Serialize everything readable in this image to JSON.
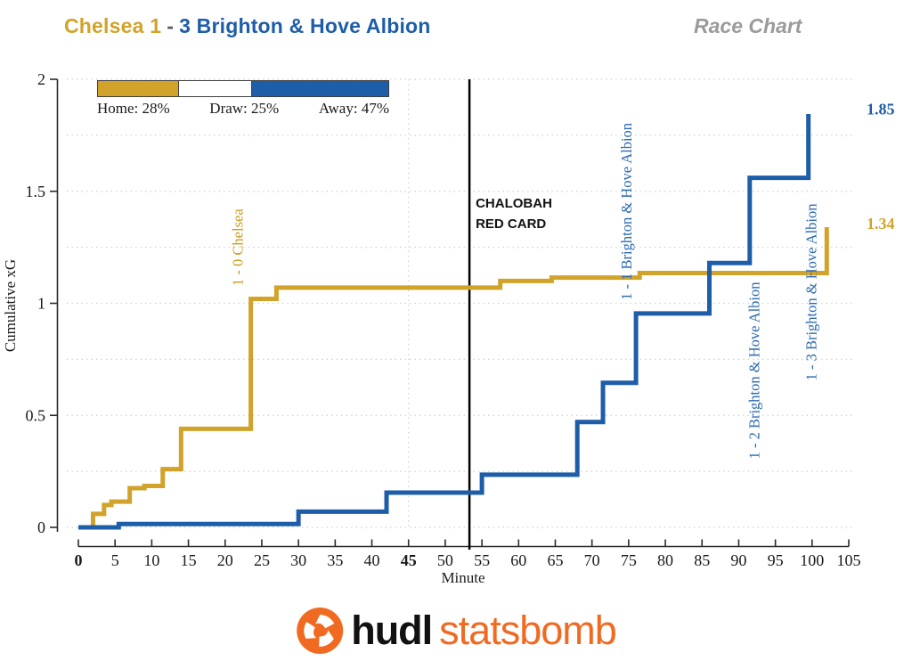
{
  "header": {
    "home_part": "Chelsea 1",
    "separator": "-",
    "away_part": "3 Brighton & Hove Albion",
    "chart_type_label": "Race Chart",
    "home_color": "#d2a32b",
    "away_color": "#1e5da8"
  },
  "legend": {
    "items": [
      {
        "label": "Home: 28%",
        "pct": 28,
        "color": "#d2a32b"
      },
      {
        "label": "Draw: 25%",
        "pct": 25,
        "color": "#ffffff"
      },
      {
        "label": "Away: 47%",
        "pct": 47,
        "color": "#1e5da8"
      }
    ]
  },
  "chart_data": {
    "type": "line",
    "subtype": "step-race-chart",
    "xlabel": "Minute",
    "ylabel": "Cumulative xG",
    "xlim": [
      0,
      105
    ],
    "ylim": [
      0,
      2
    ],
    "x_ticks": [
      0,
      5,
      10,
      15,
      20,
      25,
      30,
      35,
      40,
      45,
      50,
      55,
      60,
      65,
      70,
      75,
      80,
      85,
      90,
      95,
      100,
      105
    ],
    "x_ticks_bold": [
      0,
      45
    ],
    "y_ticks": [
      0,
      0.5,
      1,
      1.5,
      2
    ],
    "grid": {
      "horizontal_step": 0.25,
      "vertical_lines_minutes": [
        45
      ],
      "color": "#d2d2d2"
    },
    "series": [
      {
        "name": "Chelsea",
        "color": "#d2a32b",
        "final_value": 1.34,
        "final_label": "1.34",
        "steps": [
          [
            2,
            0.06
          ],
          [
            3.5,
            0.1
          ],
          [
            4.5,
            0.115
          ],
          [
            7,
            0.175
          ],
          [
            9,
            0.185
          ],
          [
            11.5,
            0.26
          ],
          [
            14,
            0.44
          ],
          [
            23.5,
            1.02
          ],
          [
            27,
            1.07
          ],
          [
            57.5,
            1.1
          ],
          [
            64.5,
            1.115
          ],
          [
            76.5,
            1.135
          ],
          [
            102,
            1.34
          ]
        ]
      },
      {
        "name": "Brighton & Hove Albion",
        "color": "#1e5da8",
        "final_value": 1.85,
        "final_label": "1.85",
        "steps": [
          [
            5.5,
            0.015
          ],
          [
            30,
            0.07
          ],
          [
            42,
            0.155
          ],
          [
            55,
            0.235
          ],
          [
            68,
            0.47
          ],
          [
            71.5,
            0.645
          ],
          [
            76,
            0.955
          ],
          [
            86,
            1.18
          ],
          [
            91.5,
            1.56
          ],
          [
            99.5,
            1.845
          ]
        ]
      }
    ],
    "event_line": {
      "minute": 53.3,
      "color": "#000000",
      "label_lines": [
        "CHALOBAH",
        "RED CARD"
      ]
    },
    "annotations": [
      {
        "text": "1 - 0 Chelsea",
        "minute": 22.4,
        "center_xg": 1.25,
        "color": "#c99c1e"
      },
      {
        "text": "1 - 1 Brighton & Hove Albion",
        "minute": 75.4,
        "center_xg": 1.41,
        "color": "#2a68b0"
      },
      {
        "text": "1 - 2 Brighton & Hove Albion",
        "minute": 92.8,
        "center_xg": 0.7,
        "color": "#2a68b0"
      },
      {
        "text": "1 - 3 Brighton & Hove Albion",
        "minute": 100.6,
        "center_xg": 1.05,
        "color": "#2a68b0"
      }
    ]
  },
  "footer": {
    "logo_bold": "hudl",
    "logo_light": "statsbomb",
    "logo_orange": "#f16a22"
  }
}
